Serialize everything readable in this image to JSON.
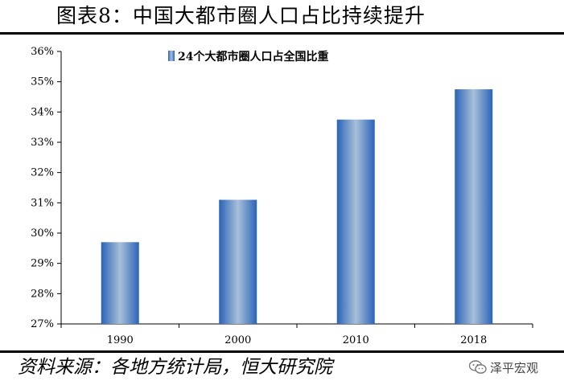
{
  "title": "图表8：中国大都市圈人口占比持续提升",
  "source": "资料来源：各地方统计局，恒大研究院",
  "watermark": {
    "text": "泽平宏观",
    "icon": "wechat-icon"
  },
  "colors": {
    "bar_edge": "#2a64b8",
    "bar_center": "#a8bfd9",
    "axis": "#000000"
  },
  "chart_data": {
    "type": "bar",
    "title": "",
    "xlabel": "",
    "ylabel": "",
    "categories": [
      "1990",
      "2000",
      "2010",
      "2018"
    ],
    "series": [
      {
        "name": "24个大都市圈人口占全国比重",
        "values": [
          29.7,
          31.1,
          33.75,
          34.75
        ]
      }
    ],
    "ylim": [
      27,
      36
    ],
    "yticks": [
      "27%",
      "28%",
      "29%",
      "30%",
      "31%",
      "32%",
      "33%",
      "34%",
      "35%",
      "36%"
    ],
    "grid": false,
    "legend": "top-center"
  }
}
